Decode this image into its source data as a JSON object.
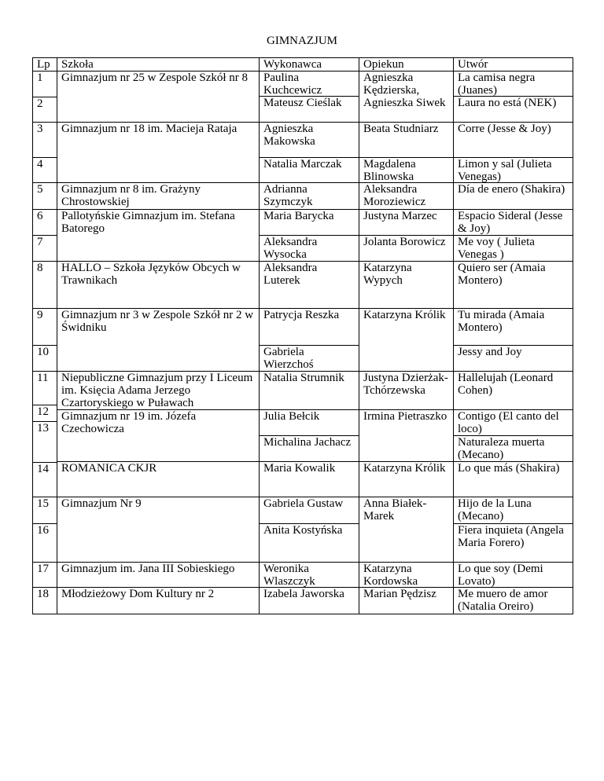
{
  "title": "GIMNAZJUM",
  "headers": {
    "lp": "Lp",
    "school": "Szkoła",
    "performer": "Wykonawca",
    "tutor": "Opiekun",
    "song": "Utwór"
  },
  "lp": [
    "1",
    "2",
    "3",
    "4",
    "5",
    "6",
    "7",
    "8",
    "9",
    "10",
    "11",
    "12",
    "13",
    "14",
    "15",
    "16",
    "17",
    "18"
  ],
  "schools": [
    "Gimnazjum nr 25 w Zespole Szkół nr 8",
    "Gimnazjum nr 18 im. Macieja Rataja",
    "Gimnazjum nr 8 im. Grażyny Chrostowskiej",
    "Pallotyńskie Gimnazjum im. Stefana Batorego",
    "HALLO – Szkoła Języków Obcych w Trawnikach",
    "Gimnazjum nr 3 w Zespole Szkół nr 2 w Świdniku",
    "Niepubliczne Gimnazjum przy I Liceum im. Księcia Adama Jerzego Czartoryskiego w Puławach",
    "Gimnazjum nr 19 im. Józefa Czechowicza",
    "ROMANICA CKJR",
    "Gimnazjum Nr 9",
    "Gimnazjum im. Jana III Sobieskiego",
    "Młodzieżowy Dom Kultury nr 2"
  ],
  "performers": [
    "Paulina Kuchcewicz",
    "Mateusz Cieślak",
    "Agnieszka Makowska",
    "Natalia Marczak",
    "Adrianna Szymczyk",
    "Maria Barycka",
    "Aleksandra Wysocka",
    "Aleksandra Luterek",
    "Patrycja Reszka",
    "Gabriela Wierzchoś",
    "Natalia Strumnik",
    "Julia Bełcik",
    "Michalina Jachacz",
    "Maria Kowalik",
    "Gabriela Gustaw",
    "Anita Kostyńska",
    "Weronika Wlaszczyk",
    "Izabela Jaworska"
  ],
  "tutors": [
    "Agnieszka Kędzierska, Agnieszka Siwek",
    "Beata Studniarz",
    "Magdalena Blinowska",
    "Aleksandra Moroziewicz",
    "Justyna Marzec",
    "Jolanta Borowicz",
    "Katarzyna Wypych",
    "Katarzyna Królik",
    "Justyna Dzierżak-Tchórzewska",
    "Irmina Pietraszko",
    "Katarzyna Królik",
    "Anna Białek-Marek",
    "Katarzyna Kordowska",
    "Marian Pędzisz"
  ],
  "songs": [
    "La camisa negra (Juanes)",
    "Laura no está (NEK)",
    "Corre (Jesse & Joy)",
    "Limon y sal (Julieta Venegas)",
    "Día de enero (Shakira)",
    "Espacio Sideral (Jesse & Joy)",
    "Me voy ( Julieta Venegas )",
    "Quiero ser (Amaia Montero)",
    "Tu mirada (Amaia Montero)",
    "Jessy and Joy",
    "Hallelujah (Leonard Cohen)",
    "Contigo (El canto del loco)",
    "Naturaleza muerta (Mecano)",
    "Lo que más (Shakira)",
    "Hijo de la Luna (Mecano)",
    "Fiera inquieta (Angela Maria Forero)",
    "Lo que soy (Demi Lovato)",
    "Me muero de amor (Natalia Oreiro)"
  ]
}
